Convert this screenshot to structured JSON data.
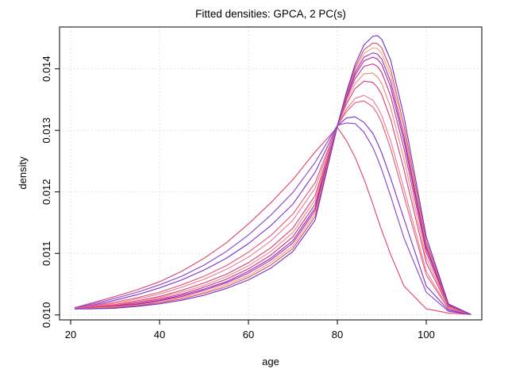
{
  "chart_data": {
    "type": "line",
    "title": "Fitted densities: GPCA, 2 PC(s)",
    "xlabel": "age",
    "ylabel": "density",
    "xlim": [
      17.5,
      112.5
    ],
    "ylim": [
      0.00992,
      0.01468
    ],
    "x_ticks": [
      20,
      40,
      60,
      80,
      100
    ],
    "y_ticks": [
      0.01,
      0.011,
      0.012,
      0.013,
      0.014
    ],
    "x_tick_labels": [
      "20",
      "40",
      "60",
      "80",
      "100"
    ],
    "y_tick_labels": [
      "0.010",
      "0.011",
      "0.012",
      "0.013",
      "0.014"
    ],
    "grid": true,
    "x": [
      21,
      25,
      30,
      35,
      40,
      45,
      50,
      55,
      60,
      65,
      70,
      75,
      80,
      82,
      84,
      86,
      88,
      89,
      90,
      92,
      95,
      100,
      105,
      110
    ],
    "series": [
      {
        "color": "#e0436a",
        "values": [
          0.01012,
          0.0102,
          0.0103,
          0.01041,
          0.01054,
          0.01071,
          0.01092,
          0.01117,
          0.01148,
          0.01182,
          0.0122,
          0.01265,
          0.01305,
          0.01284,
          0.01256,
          0.01221,
          0.0118,
          0.01158,
          0.01137,
          0.01098,
          0.01047,
          0.0101,
          0.01003,
          0.01001
        ]
      },
      {
        "color": "#8a3fd1",
        "values": [
          0.01012,
          0.01018,
          0.01027,
          0.01037,
          0.01049,
          0.01063,
          0.01081,
          0.01103,
          0.0113,
          0.01162,
          0.01199,
          0.01248,
          0.01308,
          0.01312,
          0.01311,
          0.01297,
          0.01272,
          0.01255,
          0.01236,
          0.01193,
          0.01125,
          0.01037,
          0.01006,
          0.01001
        ]
      },
      {
        "color": "#7b2fcf",
        "values": [
          0.01011,
          0.01016,
          0.01024,
          0.01033,
          0.01044,
          0.01057,
          0.01073,
          0.01092,
          0.01116,
          0.01145,
          0.0118,
          0.01232,
          0.01307,
          0.0132,
          0.01322,
          0.01313,
          0.01295,
          0.0128,
          0.01263,
          0.01222,
          0.01156,
          0.01047,
          0.01008,
          0.01001
        ]
      },
      {
        "color": "#e8557e",
        "values": [
          0.01011,
          0.01015,
          0.01021,
          0.01028,
          0.01037,
          0.01049,
          0.01063,
          0.0108,
          0.01102,
          0.01129,
          0.01164,
          0.01215,
          0.01307,
          0.0133,
          0.01345,
          0.01348,
          0.01338,
          0.01327,
          0.01312,
          0.0127,
          0.01193,
          0.01065,
          0.0101,
          0.01001
        ]
      },
      {
        "color": "#f07a8e",
        "values": [
          0.01011,
          0.01014,
          0.01019,
          0.01026,
          0.01034,
          0.01045,
          0.01058,
          0.01074,
          0.01094,
          0.0112,
          0.01154,
          0.01206,
          0.01307,
          0.01334,
          0.01352,
          0.01357,
          0.01349,
          0.01338,
          0.01324,
          0.01283,
          0.01205,
          0.01071,
          0.01011,
          0.01001
        ]
      },
      {
        "color": "#d93b7a",
        "values": [
          0.0101,
          0.01013,
          0.01017,
          0.01023,
          0.0103,
          0.0104,
          0.01052,
          0.01066,
          0.01085,
          0.01109,
          0.01141,
          0.01194,
          0.01307,
          0.01342,
          0.01368,
          0.0138,
          0.01378,
          0.0137,
          0.01358,
          0.01318,
          0.01236,
          0.01085,
          0.01013,
          0.01001
        ]
      },
      {
        "color": "#f08a78",
        "values": [
          0.0101,
          0.01012,
          0.01016,
          0.01021,
          0.01028,
          0.01037,
          0.01048,
          0.01062,
          0.0108,
          0.01103,
          0.01134,
          0.01187,
          0.01307,
          0.01346,
          0.01376,
          0.01392,
          0.01393,
          0.01387,
          0.01376,
          0.01337,
          0.01253,
          0.01093,
          0.01014,
          0.01001
        ]
      },
      {
        "color": "#c92f8f",
        "values": [
          0.0101,
          0.01012,
          0.01015,
          0.0102,
          0.01026,
          0.01034,
          0.01045,
          0.01058,
          0.01075,
          0.01097,
          0.01127,
          0.0118,
          0.01307,
          0.0135,
          0.01384,
          0.01404,
          0.01408,
          0.01404,
          0.01394,
          0.01356,
          0.0127,
          0.01102,
          0.01015,
          0.01001
        ]
      },
      {
        "color": "#b2239e",
        "values": [
          0.0101,
          0.01011,
          0.01014,
          0.01018,
          0.01024,
          0.01032,
          0.01042,
          0.01054,
          0.01071,
          0.01092,
          0.01121,
          0.01174,
          0.01307,
          0.01353,
          0.0139,
          0.01413,
          0.01419,
          0.01416,
          0.01407,
          0.0137,
          0.01282,
          0.01108,
          0.01016,
          0.01001
        ]
      },
      {
        "color": "#9c2fc0",
        "values": [
          0.0101,
          0.01011,
          0.01013,
          0.01017,
          0.01023,
          0.0103,
          0.0104,
          0.01052,
          0.01068,
          0.01089,
          0.01117,
          0.0117,
          0.01307,
          0.01355,
          0.01394,
          0.01419,
          0.01426,
          0.01424,
          0.01416,
          0.01379,
          0.0129,
          0.01112,
          0.01016,
          0.01001
        ]
      },
      {
        "color": "#f4a07a",
        "values": [
          0.0101,
          0.01011,
          0.01013,
          0.01016,
          0.01021,
          0.01028,
          0.01037,
          0.01049,
          0.01064,
          0.01085,
          0.01112,
          0.01165,
          0.01307,
          0.01357,
          0.01398,
          0.01425,
          0.01434,
          0.01433,
          0.01425,
          0.01389,
          0.01299,
          0.01116,
          0.01017,
          0.01001
        ]
      },
      {
        "color": "#e04a66",
        "values": [
          0.0101,
          0.0101,
          0.01012,
          0.01015,
          0.0102,
          0.01026,
          0.01035,
          0.01046,
          0.01061,
          0.01081,
          0.01108,
          0.0116,
          0.01307,
          0.01359,
          0.01402,
          0.01431,
          0.01442,
          0.01441,
          0.01434,
          0.01399,
          0.01308,
          0.0112,
          0.01017,
          0.01001
        ]
      },
      {
        "color": "#6a30c9",
        "values": [
          0.0101,
          0.0101,
          0.01011,
          0.01014,
          0.01018,
          0.01024,
          0.01032,
          0.01043,
          0.01057,
          0.01076,
          0.01103,
          0.01154,
          0.01307,
          0.01361,
          0.01407,
          0.01439,
          0.01453,
          0.01454,
          0.01448,
          0.01414,
          0.01322,
          0.01127,
          0.01018,
          0.01001
        ]
      }
    ]
  }
}
